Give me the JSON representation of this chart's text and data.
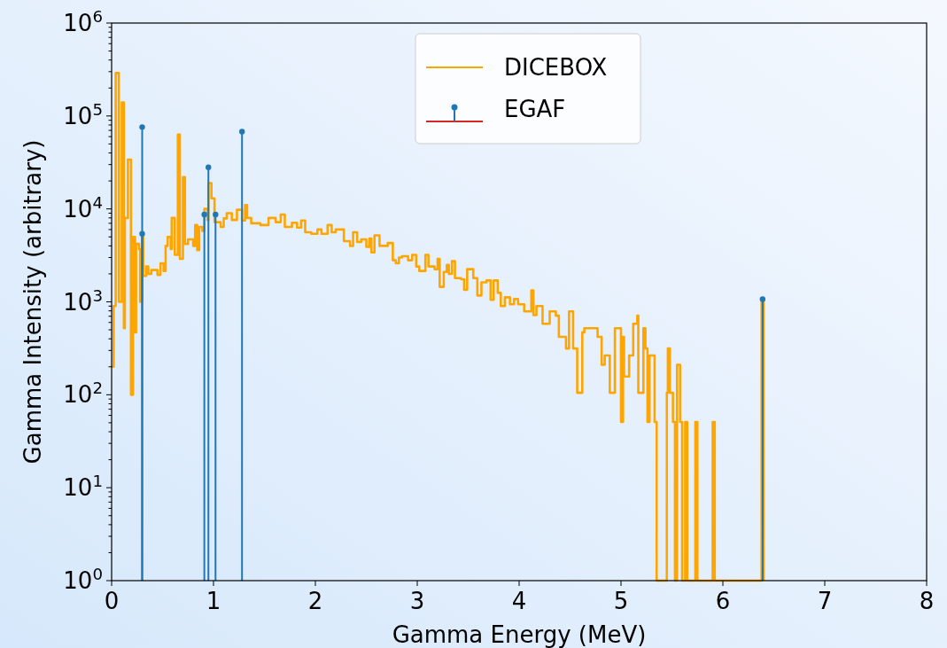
{
  "chart_data": {
    "type": "step",
    "xlabel": "Gamma Energy (MeV)",
    "ylabel": "Gamma Intensity (arbitrary)",
    "log": "y",
    "grid": false,
    "legend": "top",
    "xlim": [
      0,
      8
    ],
    "xticks": [
      0,
      1,
      2,
      3,
      4,
      5,
      6,
      7,
      8
    ],
    "ylim": [
      1,
      1000000
    ],
    "yticks": [
      {
        "value": 1,
        "label": "10$^{0}$"
      },
      {
        "value": 10,
        "label": "10$^{1}$"
      },
      {
        "value": 100,
        "label": "10$^{2}$"
      },
      {
        "value": 1000,
        "label": "10$^{3}$"
      },
      {
        "value": 10000,
        "label": "10$^{4}$"
      },
      {
        "value": 100000,
        "label": "10$^{5}$"
      },
      {
        "value": 1000000,
        "label": "10$^{6}$"
      },
      {
        "value": 2,
        "label": null
      },
      {
        "value": 3,
        "label": null
      },
      {
        "value": 4,
        "label": null
      },
      {
        "value": 5,
        "label": null
      },
      {
        "value": 6,
        "label": null
      },
      {
        "value": 7,
        "label": null
      },
      {
        "value": 8,
        "label": null
      },
      {
        "value": 9,
        "label": null
      },
      {
        "value": 20,
        "label": null
      },
      {
        "value": 30,
        "label": null
      },
      {
        "value": 40,
        "label": null
      },
      {
        "value": 50,
        "label": null
      },
      {
        "value": 60,
        "label": null
      },
      {
        "value": 70,
        "label": null
      },
      {
        "value": 80,
        "label": null
      },
      {
        "value": 90,
        "label": null
      },
      {
        "value": 200,
        "label": null
      },
      {
        "value": 300,
        "label": null
      },
      {
        "value": 400,
        "label": null
      },
      {
        "value": 500,
        "label": null
      },
      {
        "value": 600,
        "label": null
      },
      {
        "value": 700,
        "label": null
      },
      {
        "value": 800,
        "label": null
      },
      {
        "value": 900,
        "label": null
      },
      {
        "value": 2000,
        "label": null
      },
      {
        "value": 3000,
        "label": null
      },
      {
        "value": 4000,
        "label": null
      },
      {
        "value": 5000,
        "label": null
      },
      {
        "value": 6000,
        "label": null
      },
      {
        "value": 7000,
        "label": null
      },
      {
        "value": 8000,
        "label": null
      },
      {
        "value": 9000,
        "label": null
      },
      {
        "value": 20000,
        "label": null
      },
      {
        "value": 30000,
        "label": null
      },
      {
        "value": 40000,
        "label": null
      },
      {
        "value": 50000,
        "label": null
      },
      {
        "value": 60000,
        "label": null
      },
      {
        "value": 70000,
        "label": null
      },
      {
        "value": 80000,
        "label": null
      },
      {
        "value": 90000,
        "label": null
      },
      {
        "value": 200000,
        "label": null
      },
      {
        "value": 300000,
        "label": null
      },
      {
        "value": 400000,
        "label": null
      },
      {
        "value": 500000,
        "label": null
      },
      {
        "value": 600000,
        "label": null
      },
      {
        "value": 700000,
        "label": null
      },
      {
        "value": 800000,
        "label": null
      },
      {
        "value": 900000,
        "label": null
      }
    ],
    "series": [
      {
        "name": "DICEBOX",
        "color": "#ffa500",
        "x": [
          0,
          0.02,
          0.04,
          0.07,
          0.1,
          0.12,
          0.13,
          0.16,
          0.19,
          0.21,
          0.23,
          0.24,
          0.27,
          0.28,
          0.3,
          0.31,
          0.34,
          0.36,
          0.39,
          0.45,
          0.48,
          0.51,
          0.53,
          0.55,
          0.58,
          0.59,
          0.62,
          0.65,
          0.67,
          0.7,
          0.72,
          0.75,
          0.8,
          0.82,
          0.84,
          0.86,
          0.89,
          0.91,
          0.94,
          0.95,
          0.98,
          1.01,
          1.07,
          1.1,
          1.13,
          1.18,
          1.23,
          1.28,
          1.31,
          1.33,
          1.37,
          1.46,
          1.54,
          1.61,
          1.66,
          1.7,
          1.77,
          1.82,
          1.86,
          1.9,
          1.96,
          2.02,
          2.06,
          2.12,
          2.16,
          2.2,
          2.26,
          2.28,
          2.34,
          2.37,
          2.41,
          2.45,
          2.5,
          2.53,
          2.55,
          2.58,
          2.63,
          2.71,
          2.76,
          2.79,
          2.82,
          2.85,
          2.91,
          2.95,
          2.99,
          3.02,
          3.08,
          3.11,
          3.17,
          3.2,
          3.22,
          3.26,
          3.29,
          3.31,
          3.34,
          3.37,
          3.43,
          3.46,
          3.49,
          3.55,
          3.59,
          3.63,
          3.68,
          3.72,
          3.75,
          3.79,
          3.82,
          3.86,
          3.91,
          3.95,
          3.99,
          4.05,
          4.12,
          4.14,
          4.17,
          4.23,
          4.3,
          4.36,
          4.39,
          4.46,
          4.49,
          4.53,
          4.57,
          4.62,
          4.64,
          4.77,
          4.81,
          4.84,
          4.89,
          4.94,
          5.0,
          5.02,
          5.03,
          5.08,
          5.12,
          5.16,
          5.17,
          5.22,
          5.24,
          5.26,
          5.28,
          5.33,
          5.35,
          5.45,
          5.46,
          5.48,
          5.51,
          5.53,
          5.55,
          5.58,
          5.6,
          5.63,
          5.65,
          5.73,
          5.75,
          5.9,
          5.92,
          6.38,
          6.4
        ],
        "values": [
          200,
          900,
          290000,
          1000,
          140000,
          520,
          8000,
          34000,
          100,
          5000,
          470,
          4200,
          3700,
          1000,
          5000,
          1900,
          2400,
          2000,
          2200,
          1950,
          2600,
          2150,
          4000,
          5000,
          3700,
          8000,
          3200,
          63000,
          2900,
          22000,
          4200,
          4700,
          4000,
          6700,
          3600,
          6400,
          5800,
          10000,
          7600,
          19000,
          13000,
          7200,
          6400,
          7900,
          9000,
          7600,
          9800,
          7500,
          11000,
          8000,
          7000,
          6700,
          8000,
          7200,
          8700,
          6400,
          7100,
          6300,
          7500,
          5600,
          5400,
          6000,
          5400,
          6700,
          5600,
          6000,
          6000,
          4500,
          4000,
          5600,
          4400,
          4700,
          3900,
          4800,
          3400,
          5200,
          4000,
          4300,
          2800,
          2600,
          3000,
          3100,
          2800,
          3200,
          2400,
          2150,
          3200,
          2400,
          2250,
          2900,
          1450,
          2100,
          2500,
          2000,
          2750,
          1800,
          1750,
          1350,
          2250,
          1800,
          1170,
          1620,
          1700,
          1050,
          1700,
          1250,
          900,
          1120,
          940,
          1070,
          940,
          790,
          1330,
          720,
          900,
          580,
          790,
          710,
          420,
          315,
          790,
          315,
          105,
          470,
          520,
          420,
          210,
          265,
          105,
          520,
          51,
          420,
          157,
          265,
          580,
          710,
          105,
          520,
          315,
          51,
          265,
          51,
          1,
          105,
          315,
          105,
          51,
          1,
          210,
          51,
          1,
          51,
          1,
          51,
          1,
          51,
          1,
          1000,
          1
        ]
      },
      {
        "name": "EGAF",
        "type": "lollipop",
        "color": "#1f77b4",
        "x": [
          0.3,
          0.3,
          0.91,
          0.95,
          1.02,
          1.28,
          6.39
        ],
        "values": [
          76000,
          5400,
          8700,
          28000,
          8700,
          68000,
          1070
        ]
      }
    ]
  }
}
